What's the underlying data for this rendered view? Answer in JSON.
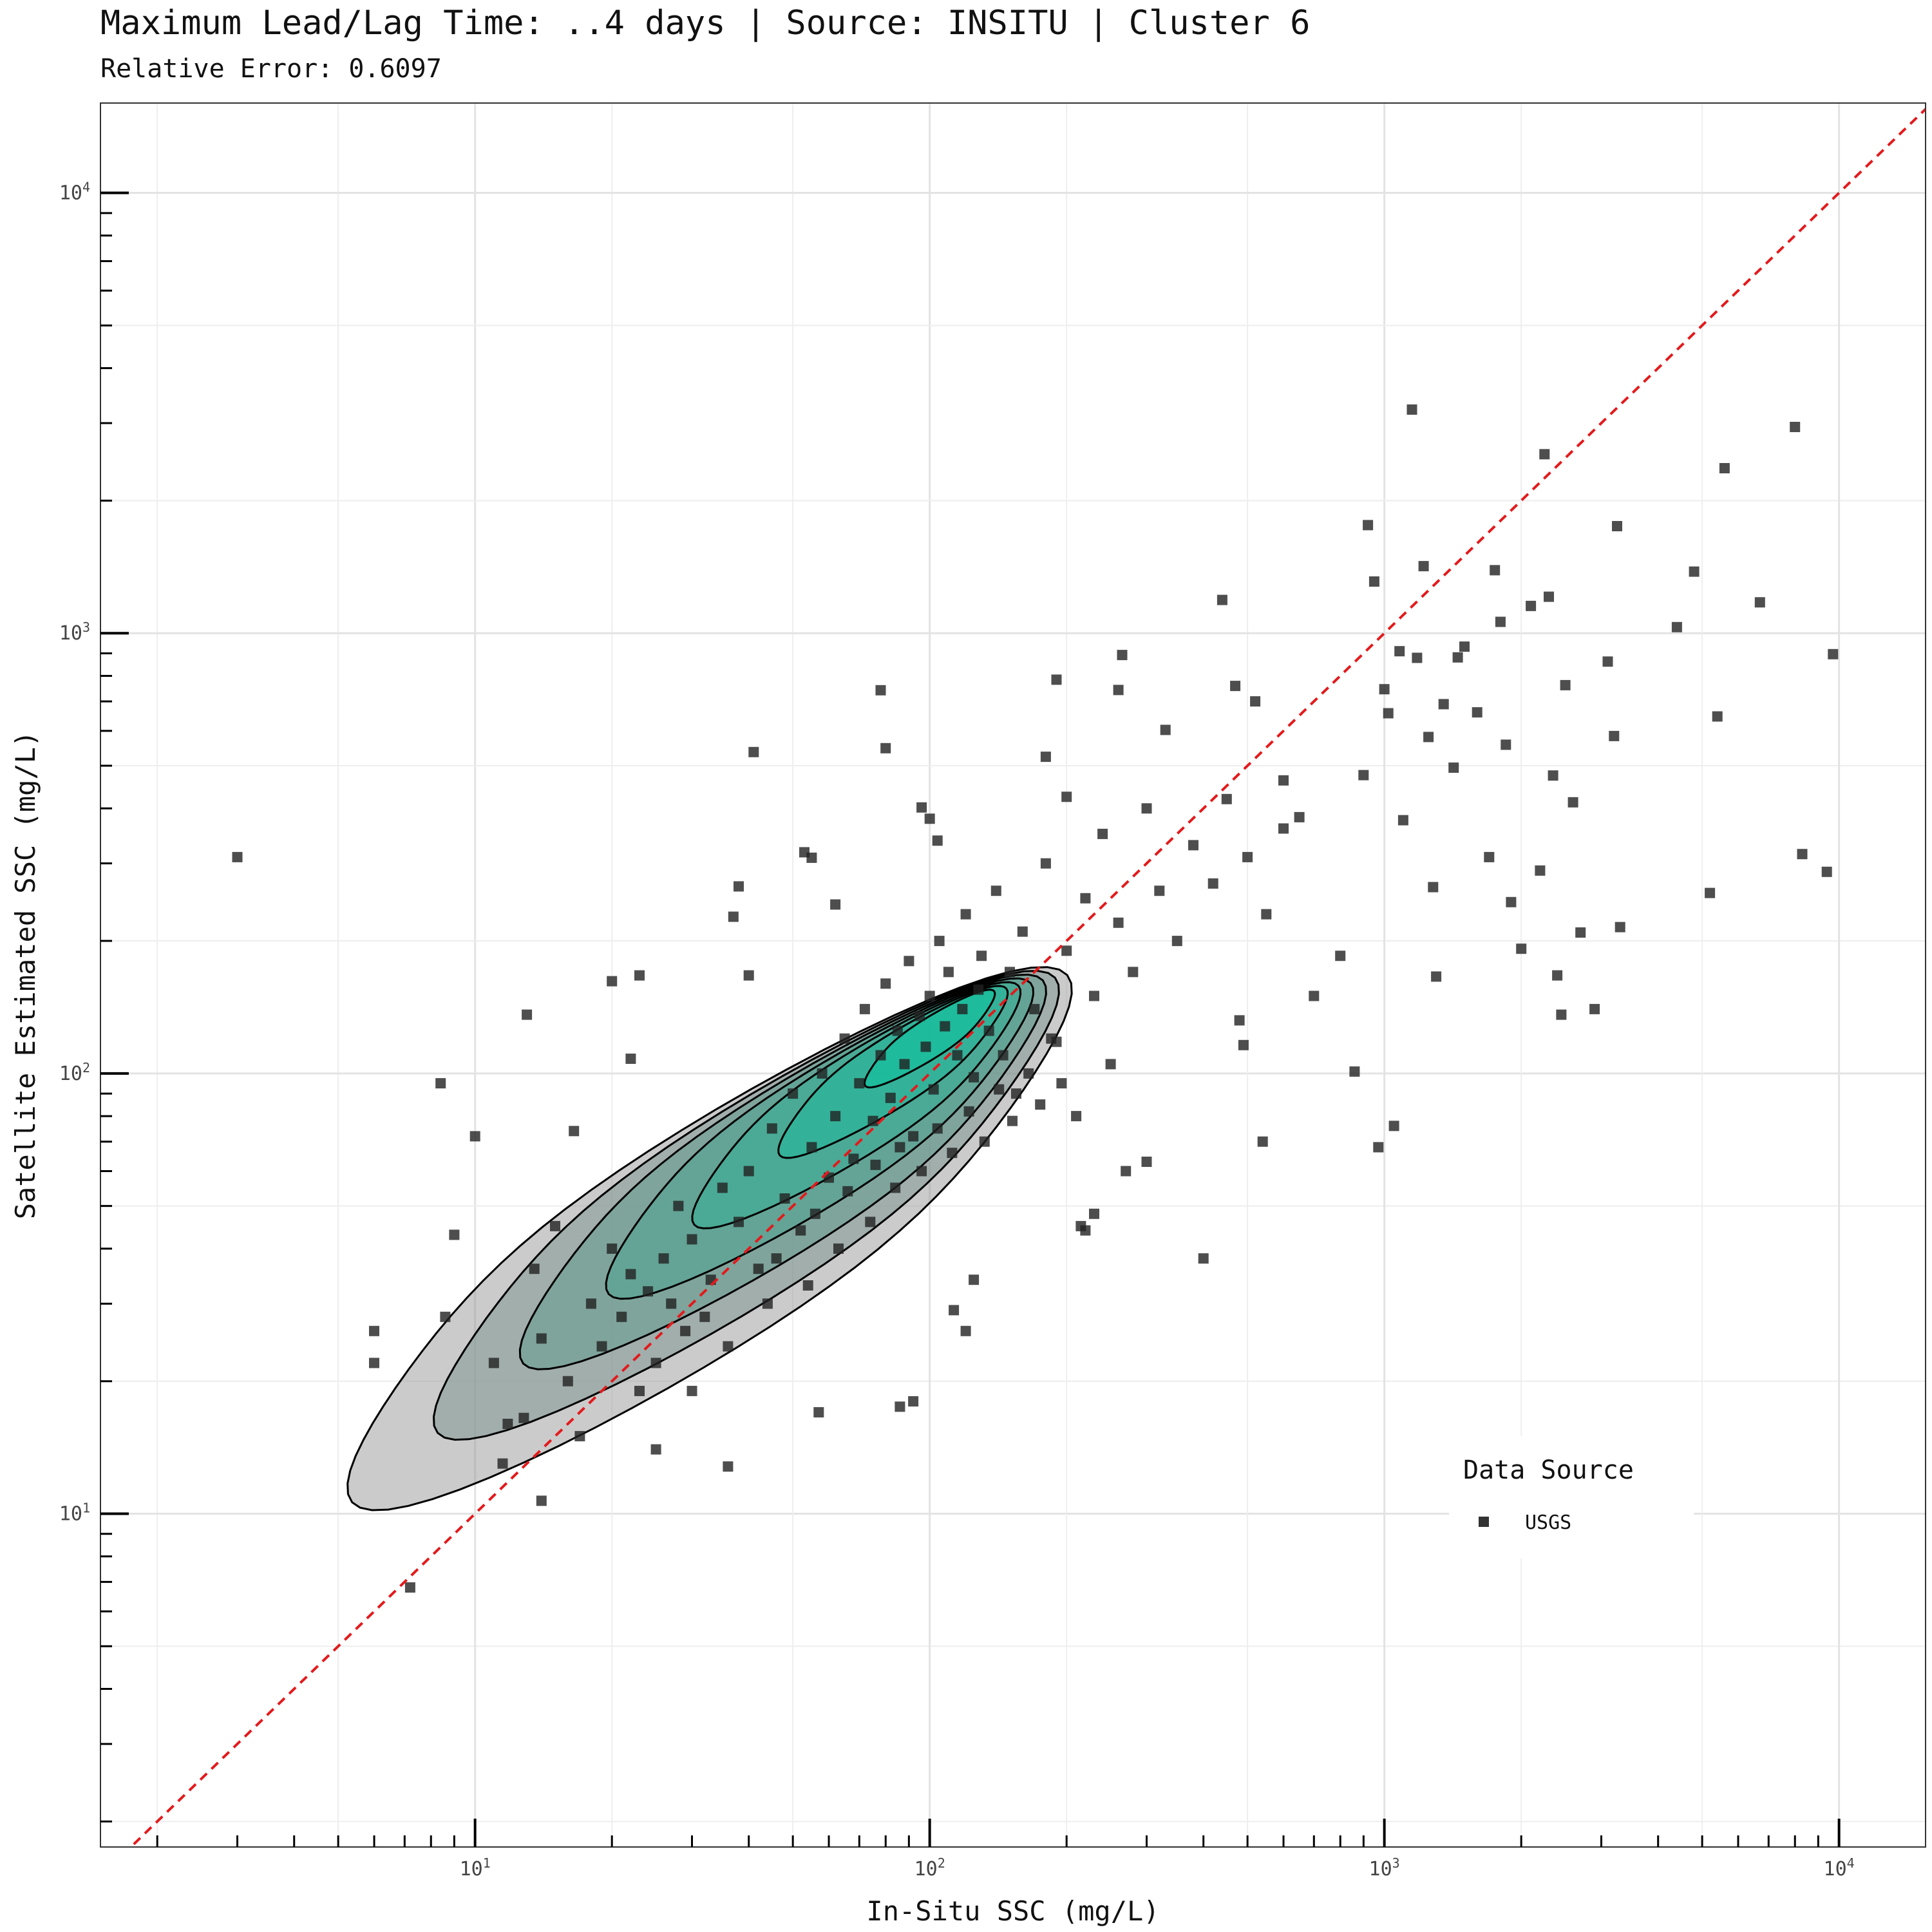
{
  "chart_data": {
    "type": "scatter",
    "title": "Maximum Lead/Lag Time: ..4 days | Source: INSITU | Cluster 6",
    "subtitle": "Relative Error: 0.6097",
    "xlabel": "In-Situ SSC (mg/L)",
    "ylabel": "Satellite Estimated SSC (mg/L)",
    "xscale": "log",
    "yscale": "log",
    "xlim": [
      1.5,
      15500
    ],
    "ylim": [
      1.75,
      16000
    ],
    "x_ticks": [
      {
        "base": "10",
        "exp": "1",
        "value": 10
      },
      {
        "base": "10",
        "exp": "2",
        "value": 100
      },
      {
        "base": "10",
        "exp": "3",
        "value": 1000
      },
      {
        "base": "10",
        "exp": "4",
        "value": 10000
      }
    ],
    "y_ticks": [
      {
        "base": "10",
        "exp": "1",
        "value": 10
      },
      {
        "base": "10",
        "exp": "2",
        "value": 100
      },
      {
        "base": "10",
        "exp": "3",
        "value": 1000
      },
      {
        "base": "10",
        "exp": "4",
        "value": 10000
      }
    ],
    "grid": true,
    "reference_line": {
      "type": "1:1",
      "style": "dashed",
      "color": "#e31a1c"
    },
    "density_contours": {
      "levels": 7,
      "fill_low": "#8c8c8c",
      "fill_high": "#1abc9c"
    },
    "legend": {
      "title": "Data Source",
      "position": "lower-right",
      "entries": [
        {
          "label": "USGS",
          "marker": "square",
          "color": "#333333"
        }
      ]
    },
    "series": [
      {
        "name": "USGS",
        "points": [
          [
            3.0,
            310
          ],
          [
            6.0,
            26
          ],
          [
            6.0,
            22
          ],
          [
            7.2,
            6.8
          ],
          [
            8.4,
            95
          ],
          [
            8.6,
            28
          ],
          [
            9.0,
            43
          ],
          [
            10.0,
            72
          ],
          [
            11.0,
            22
          ],
          [
            11.5,
            13
          ],
          [
            11.8,
            16
          ],
          [
            12.8,
            16.5
          ],
          [
            13.0,
            136
          ],
          [
            13.5,
            36
          ],
          [
            14.0,
            10.7
          ],
          [
            16.5,
            74
          ],
          [
            17.0,
            15
          ],
          [
            20.0,
            162
          ],
          [
            23.0,
            167
          ],
          [
            22.0,
            108
          ],
          [
            25.0,
            14
          ],
          [
            23.0,
            19
          ],
          [
            30.0,
            19
          ],
          [
            37.0,
            227
          ],
          [
            38.0,
            266
          ],
          [
            40.0,
            167
          ],
          [
            41.0,
            537
          ],
          [
            36.0,
            12.8
          ],
          [
            53.0,
            318
          ],
          [
            55.0,
            309
          ],
          [
            57.0,
            17
          ],
          [
            62.0,
            242
          ],
          [
            78.0,
            742
          ],
          [
            80.0,
            548
          ],
          [
            86.0,
            17.5
          ],
          [
            92.0,
            18
          ],
          [
            96.0,
            402
          ],
          [
            100.0,
            379
          ],
          [
            104.0,
            338
          ],
          [
            113.0,
            29
          ],
          [
            120.0,
            26
          ],
          [
            125.0,
            34
          ],
          [
            180.0,
            524
          ],
          [
            190.0,
            784
          ],
          [
            200.0,
            425
          ],
          [
            215.0,
            45
          ],
          [
            220.0,
            44
          ],
          [
            230.0,
            48
          ],
          [
            260.0,
            743
          ],
          [
            265.0,
            892
          ],
          [
            270.0,
            60
          ],
          [
            300.0,
            63
          ],
          [
            330.0,
            603
          ],
          [
            400.0,
            38
          ],
          [
            440.0,
            1190
          ],
          [
            470.0,
            759
          ],
          [
            480.0,
            132
          ],
          [
            490.0,
            116
          ],
          [
            520.0,
            700
          ],
          [
            540.0,
            70
          ],
          [
            600.0,
            463
          ],
          [
            650.0,
            382
          ],
          [
            700.0,
            150
          ],
          [
            800.0,
            185
          ],
          [
            860.0,
            101
          ],
          [
            900.0,
            476
          ],
          [
            920.0,
            1760
          ],
          [
            950.0,
            1310
          ],
          [
            970.0,
            68
          ],
          [
            1000.0,
            746
          ],
          [
            1020.0,
            658
          ],
          [
            1050.0,
            76
          ],
          [
            1080.0,
            910
          ],
          [
            1100.0,
            376
          ],
          [
            1150.0,
            3220
          ],
          [
            1180.0,
            879
          ],
          [
            1220.0,
            1420
          ],
          [
            1250.0,
            581
          ],
          [
            1280.0,
            265
          ],
          [
            1300.0,
            166
          ],
          [
            1350.0,
            690
          ],
          [
            1420.0,
            495
          ],
          [
            1450.0,
            881
          ],
          [
            1500.0,
            932
          ],
          [
            1600.0,
            661
          ],
          [
            1700.0,
            310
          ],
          [
            1750.0,
            1390
          ],
          [
            1800.0,
            1061
          ],
          [
            1850.0,
            558
          ],
          [
            1900.0,
            245
          ],
          [
            2000.0,
            192
          ],
          [
            2100.0,
            1153
          ],
          [
            2200.0,
            289
          ],
          [
            2250.0,
            2550
          ],
          [
            2300.0,
            1210
          ],
          [
            2350.0,
            475
          ],
          [
            2400.0,
            167
          ],
          [
            2450.0,
            136
          ],
          [
            2500.0,
            762
          ],
          [
            2600.0,
            413
          ],
          [
            2700.0,
            209
          ],
          [
            2900.0,
            140
          ],
          [
            3100.0,
            862
          ],
          [
            3200.0,
            584
          ],
          [
            3250.0,
            1750
          ],
          [
            3300.0,
            215
          ],
          [
            4400.0,
            1032
          ],
          [
            4800.0,
            1380
          ],
          [
            5200.0,
            257
          ],
          [
            5400.0,
            647
          ],
          [
            5600.0,
            2370
          ],
          [
            6700.0,
            1175
          ],
          [
            8000.0,
            2940
          ],
          [
            8300.0,
            315
          ],
          [
            9400.0,
            287
          ],
          [
            9700.0,
            896
          ],
          [
            15,
            45
          ],
          [
            18,
            30
          ],
          [
            20,
            40
          ],
          [
            22,
            35
          ],
          [
            24,
            32
          ],
          [
            26,
            38
          ],
          [
            28,
            50
          ],
          [
            30,
            42
          ],
          [
            32,
            28
          ],
          [
            35,
            55
          ],
          [
            38,
            46
          ],
          [
            40,
            60
          ],
          [
            42,
            36
          ],
          [
            45,
            75
          ],
          [
            48,
            52
          ],
          [
            50,
            90
          ],
          [
            52,
            44
          ],
          [
            55,
            68
          ],
          [
            58,
            100
          ],
          [
            60,
            58
          ],
          [
            62,
            80
          ],
          [
            65,
            120
          ],
          [
            68,
            64
          ],
          [
            70,
            95
          ],
          [
            72,
            140
          ],
          [
            75,
            78
          ],
          [
            78,
            110
          ],
          [
            80,
            160
          ],
          [
            82,
            88
          ],
          [
            85,
            125
          ],
          [
            88,
            105
          ],
          [
            90,
            180
          ],
          [
            92,
            72
          ],
          [
            95,
            135
          ],
          [
            98,
            115
          ],
          [
            100,
            150
          ],
          [
            102,
            92
          ],
          [
            105,
            200
          ],
          [
            108,
            128
          ],
          [
            110,
            170
          ],
          [
            115,
            110
          ],
          [
            118,
            140
          ],
          [
            120,
            230
          ],
          [
            125,
            98
          ],
          [
            128,
            155
          ],
          [
            130,
            185
          ],
          [
            135,
            125
          ],
          [
            140,
            260
          ],
          [
            145,
            110
          ],
          [
            150,
            170
          ],
          [
            155,
            90
          ],
          [
            160,
            210
          ],
          [
            170,
            140
          ],
          [
            180,
            300
          ],
          [
            190,
            118
          ],
          [
            200,
            190
          ],
          [
            210,
            80
          ],
          [
            220,
            250
          ],
          [
            230,
            150
          ],
          [
            240,
            350
          ],
          [
            250,
            105
          ],
          [
            260,
            220
          ],
          [
            280,
            170
          ],
          [
            300,
            400
          ],
          [
            320,
            260
          ],
          [
            350,
            200
          ],
          [
            380,
            330
          ],
          [
            420,
            270
          ],
          [
            450,
            420
          ],
          [
            500,
            310
          ],
          [
            550,
            230
          ],
          [
            600,
            360
          ],
          [
            14,
            25
          ],
          [
            16,
            20
          ],
          [
            19,
            24
          ],
          [
            21,
            28
          ],
          [
            25,
            22
          ],
          [
            27,
            30
          ],
          [
            29,
            26
          ],
          [
            33,
            34
          ],
          [
            36,
            24
          ],
          [
            44,
            30
          ],
          [
            46,
            38
          ],
          [
            54,
            33
          ],
          [
            56,
            48
          ],
          [
            63,
            40
          ],
          [
            66,
            54
          ],
          [
            74,
            46
          ],
          [
            76,
            62
          ],
          [
            84,
            55
          ],
          [
            86,
            68
          ],
          [
            96,
            60
          ],
          [
            104,
            75
          ],
          [
            112,
            66
          ],
          [
            122,
            82
          ],
          [
            132,
            70
          ],
          [
            142,
            92
          ],
          [
            152,
            78
          ],
          [
            165,
            100
          ],
          [
            175,
            85
          ],
          [
            185,
            120
          ],
          [
            195,
            95
          ]
        ]
      }
    ]
  }
}
